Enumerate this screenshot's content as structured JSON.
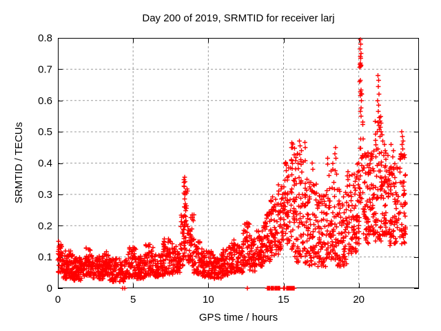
{
  "chart_data": {
    "type": "scatter",
    "title": "Day 200 of 2019, SRMTID for receiver larj",
    "xlabel": "GPS time / hours",
    "ylabel": "SRMTID / TECUs",
    "xlim": [
      0,
      24
    ],
    "ylim": [
      0,
      0.8
    ],
    "xticks": [
      {
        "label": "0",
        "value": 0
      },
      {
        "label": "5",
        "value": 5
      },
      {
        "label": "10",
        "value": 10
      },
      {
        "label": "15",
        "value": 15
      },
      {
        "label": "20",
        "value": 20
      }
    ],
    "yticks": [
      {
        "label": "0",
        "value": 0
      },
      {
        "label": "0.1",
        "value": 0.1
      },
      {
        "label": "0.2",
        "value": 0.2
      },
      {
        "label": "0.3",
        "value": 0.3
      },
      {
        "label": "0.4",
        "value": 0.4
      },
      {
        "label": "0.5",
        "value": 0.5
      },
      {
        "label": "0.6",
        "value": 0.6
      },
      {
        "label": "0.7",
        "value": 0.7
      },
      {
        "label": "0.8",
        "value": 0.8
      }
    ],
    "grid": true,
    "legend": "none",
    "marker": "plus",
    "marker_color": "#ff0000",
    "grid_color": "#9b9b9b",
    "frame_color": "#000000",
    "seed": 42,
    "series_name": "SRMTID",
    "density_segments": [
      [
        0.0,
        0.35,
        40,
        0.05,
        0.15,
        1.2
      ],
      [
        0.35,
        1.0,
        72,
        0.03,
        0.12,
        1.4
      ],
      [
        1.0,
        1.8,
        84,
        0.025,
        0.1,
        1.3
      ],
      [
        1.8,
        2.3,
        54,
        0.04,
        0.13,
        1.4
      ],
      [
        2.3,
        3.0,
        72,
        0.03,
        0.105,
        1.3
      ],
      [
        3.0,
        3.4,
        44,
        0.04,
        0.12,
        1.5
      ],
      [
        3.4,
        4.6,
        115,
        0.02,
        0.095,
        1.3
      ],
      [
        4.6,
        5.2,
        62,
        0.035,
        0.13,
        1.5
      ],
      [
        5.2,
        5.8,
        60,
        0.03,
        0.105,
        1.3
      ],
      [
        5.8,
        6.35,
        56,
        0.04,
        0.14,
        1.5
      ],
      [
        6.35,
        7.0,
        64,
        0.035,
        0.11,
        1.3
      ],
      [
        7.0,
        7.65,
        66,
        0.045,
        0.16,
        1.5
      ],
      [
        7.65,
        8.15,
        52,
        0.05,
        0.14,
        1.4
      ],
      [
        8.15,
        8.35,
        24,
        0.07,
        0.24,
        1.2
      ],
      [
        8.35,
        8.62,
        36,
        0.09,
        0.355,
        1.1
      ],
      [
        8.62,
        8.8,
        20,
        0.07,
        0.2,
        1.2
      ],
      [
        8.8,
        9.05,
        26,
        0.07,
        0.24,
        1.2
      ],
      [
        9.05,
        9.6,
        56,
        0.045,
        0.15,
        1.4
      ],
      [
        9.6,
        10.35,
        72,
        0.035,
        0.12,
        1.4
      ],
      [
        10.35,
        10.85,
        50,
        0.03,
        0.1,
        1.3
      ],
      [
        10.85,
        11.35,
        50,
        0.04,
        0.125,
        1.4
      ],
      [
        11.35,
        11.95,
        60,
        0.05,
        0.155,
        1.4
      ],
      [
        11.95,
        12.3,
        36,
        0.05,
        0.135,
        1.4
      ],
      [
        12.3,
        12.75,
        46,
        0.07,
        0.21,
        1.3
      ],
      [
        12.75,
        13.15,
        40,
        0.055,
        0.16,
        1.3
      ],
      [
        13.15,
        13.65,
        50,
        0.07,
        0.19,
        1.3
      ],
      [
        13.65,
        14.15,
        50,
        0.08,
        0.25,
        1.3
      ],
      [
        14.15,
        14.65,
        50,
        0.1,
        0.3,
        1.2
      ],
      [
        14.65,
        15.05,
        42,
        0.12,
        0.34,
        1.2
      ],
      [
        15.05,
        15.45,
        40,
        0.14,
        0.41,
        1.2
      ],
      [
        15.45,
        15.75,
        36,
        0.12,
        0.47,
        1.1
      ],
      [
        15.75,
        16.5,
        82,
        0.08,
        0.47,
        1.5
      ],
      [
        16.5,
        17.25,
        76,
        0.07,
        0.35,
        1.5
      ],
      [
        17.25,
        17.85,
        60,
        0.06,
        0.3,
        1.4
      ],
      [
        17.85,
        18.55,
        72,
        0.09,
        0.42,
        1.5
      ],
      [
        18.55,
        19.2,
        66,
        0.07,
        0.32,
        1.4
      ],
      [
        19.2,
        19.85,
        66,
        0.11,
        0.38,
        1.3
      ],
      [
        19.85,
        20.05,
        26,
        0.14,
        0.45,
        1.2
      ],
      [
        20.05,
        20.3,
        30,
        0.25,
        0.72,
        1.3
      ],
      [
        20.3,
        20.65,
        42,
        0.14,
        0.44,
        1.3
      ],
      [
        20.65,
        21.05,
        46,
        0.17,
        0.47,
        1.2
      ],
      [
        21.05,
        21.5,
        52,
        0.15,
        0.55,
        1.4
      ],
      [
        21.5,
        22.05,
        62,
        0.17,
        0.44,
        1.2
      ],
      [
        22.05,
        22.55,
        56,
        0.13,
        0.4,
        1.2
      ],
      [
        22.55,
        23.1,
        56,
        0.14,
        0.43,
        1.3
      ]
    ],
    "notable_points": [
      [
        8.42,
        0.355
      ],
      [
        8.45,
        0.34
      ],
      [
        8.4,
        0.325
      ],
      [
        8.47,
        0.31
      ],
      [
        8.44,
        0.3
      ],
      [
        8.43,
        0.285
      ],
      [
        8.48,
        0.27
      ],
      [
        8.41,
        0.26
      ],
      [
        8.92,
        0.235
      ],
      [
        8.95,
        0.22
      ],
      [
        12.5,
        0.205
      ],
      [
        12.6,
        0.195
      ],
      [
        15.55,
        0.465
      ],
      [
        15.6,
        0.45
      ],
      [
        15.95,
        0.43
      ],
      [
        16.05,
        0.47
      ],
      [
        16.1,
        0.455
      ],
      [
        16.2,
        0.44
      ],
      [
        16.9,
        0.4
      ],
      [
        16.95,
        0.38
      ],
      [
        18.42,
        0.43
      ],
      [
        18.45,
        0.45
      ],
      [
        18.48,
        0.415
      ],
      [
        20.05,
        0.66
      ],
      [
        20.08,
        0.765
      ],
      [
        20.09,
        0.715
      ],
      [
        20.1,
        0.795
      ],
      [
        20.1,
        0.74
      ],
      [
        20.1,
        0.665
      ],
      [
        20.11,
        0.72
      ],
      [
        20.12,
        0.78
      ],
      [
        20.13,
        0.735
      ],
      [
        20.14,
        0.71
      ],
      [
        20.15,
        0.75
      ],
      [
        20.18,
        0.6
      ],
      [
        20.2,
        0.62
      ],
      [
        21.25,
        0.6
      ],
      [
        21.27,
        0.53
      ],
      [
        21.28,
        0.68
      ],
      [
        21.3,
        0.645
      ],
      [
        21.3,
        0.565
      ],
      [
        21.32,
        0.585
      ],
      [
        21.33,
        0.665
      ],
      [
        21.34,
        0.52
      ],
      [
        21.35,
        0.62
      ],
      [
        21.37,
        0.545
      ],
      [
        21.55,
        0.49
      ],
      [
        21.6,
        0.47
      ],
      [
        21.7,
        0.46
      ],
      [
        21.75,
        0.44
      ],
      [
        22.15,
        0.46
      ],
      [
        22.25,
        0.42
      ],
      [
        22.3,
        0.44
      ],
      [
        22.8,
        0.43
      ],
      [
        22.85,
        0.5
      ],
      [
        22.88,
        0.46
      ],
      [
        22.9,
        0.485
      ],
      [
        22.92,
        0.445
      ],
      [
        22.95,
        0.47
      ],
      [
        23.0,
        0.3
      ],
      [
        23.05,
        0.27
      ],
      [
        23.08,
        0.23
      ],
      [
        23.1,
        0.19
      ]
    ],
    "zero_value_clusters": [
      [
        4.3,
        4.45,
        2
      ],
      [
        12.6,
        12.63,
        1
      ],
      [
        13.93,
        14.08,
        6
      ],
      [
        14.17,
        14.33,
        7
      ],
      [
        14.42,
        14.55,
        6
      ],
      [
        14.6,
        14.76,
        7
      ],
      [
        15.0,
        15.08,
        4
      ],
      [
        15.2,
        15.7,
        30
      ]
    ]
  }
}
